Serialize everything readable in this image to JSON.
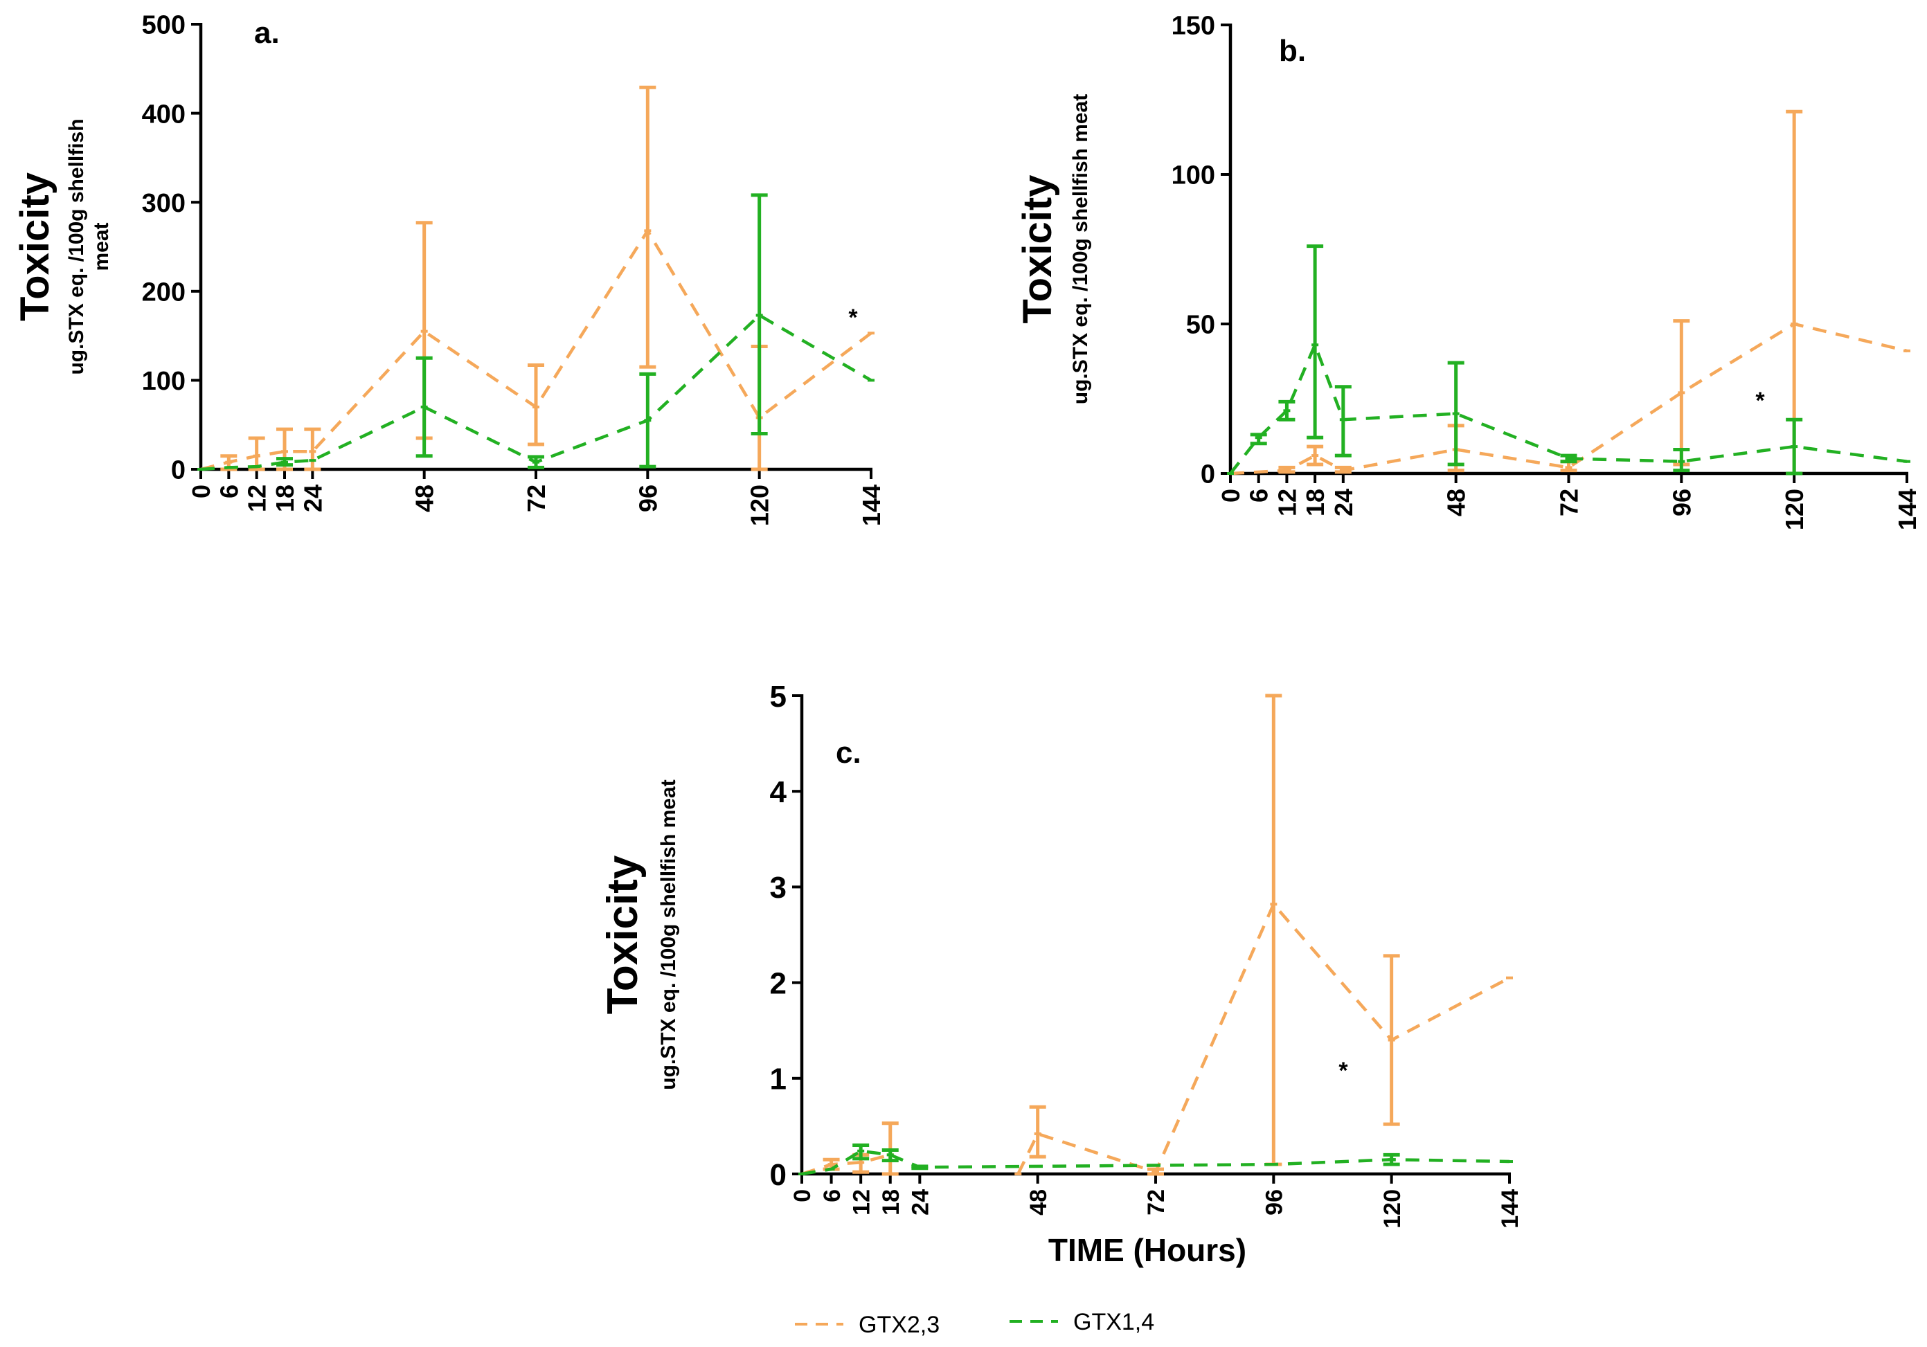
{
  "colors": {
    "GTX2,3": "#F5A85A",
    "GTX1,4": "#22B022"
  },
  "legend": {
    "items": [
      "GTX2,3",
      "GTX1,4"
    ],
    "position": "bottom-center"
  },
  "x_title": "TIME (Hours)",
  "chart_data": [
    {
      "type": "line",
      "panel_label": "a.",
      "annotation": "*",
      "y_title": "Toxicity",
      "y_subtitle_lines": [
        "ug.STX eq. /100g shellfish",
        "meat"
      ],
      "x_ticks": [
        0,
        6,
        12,
        18,
        24,
        48,
        72,
        96,
        120,
        144
      ],
      "y_ticks": [
        0,
        100,
        200,
        300,
        400,
        500
      ],
      "xlim": [
        0,
        144
      ],
      "ylim": [
        0,
        500
      ],
      "series": [
        {
          "name": "GTX2,3",
          "x": [
            0,
            6,
            12,
            18,
            24,
            48,
            72,
            96,
            120,
            144
          ],
          "y": [
            0,
            8,
            15,
            20,
            20,
            155,
            70,
            268,
            58,
            153
          ],
          "err_low": [
            null,
            0,
            0,
            0,
            0,
            35,
            28,
            115,
            0,
            null
          ],
          "err_high": [
            null,
            15,
            35,
            45,
            45,
            277,
            117,
            429,
            138,
            null
          ]
        },
        {
          "name": "GTX1,4",
          "x": [
            0,
            6,
            12,
            18,
            24,
            48,
            72,
            96,
            120,
            144
          ],
          "y": [
            0,
            2,
            3,
            8,
            10,
            70,
            8,
            55,
            173,
            100
          ],
          "err_low": [
            null,
            null,
            null,
            5,
            null,
            15,
            2,
            3,
            40,
            null
          ],
          "err_high": [
            null,
            null,
            null,
            12,
            null,
            125,
            14,
            107,
            308,
            null
          ]
        }
      ]
    },
    {
      "type": "line",
      "panel_label": "b.",
      "annotation": "*",
      "y_title": "Toxicity",
      "y_subtitle_lines": [
        "ug.STX eq. /100g shellfish meat"
      ],
      "x_ticks": [
        0,
        6,
        12,
        18,
        24,
        48,
        72,
        96,
        120,
        144
      ],
      "y_ticks": [
        0,
        50,
        100,
        150
      ],
      "xlim": [
        0,
        144
      ],
      "ylim": [
        0,
        150
      ],
      "series": [
        {
          "name": "GTX2,3",
          "x": [
            0,
            12,
            18,
            24,
            48,
            72,
            96,
            120,
            144
          ],
          "y": [
            0,
            1,
            6,
            1,
            8,
            2,
            27,
            50,
            41
          ],
          "err_low": [
            null,
            0.5,
            3,
            0.5,
            1,
            1,
            3,
            0,
            null
          ],
          "err_high": [
            null,
            2,
            9,
            2,
            16,
            4,
            51,
            121,
            null
          ]
        },
        {
          "name": "GTX1,4",
          "x": [
            0,
            6,
            12,
            18,
            24,
            48,
            72,
            96,
            120,
            144
          ],
          "y": [
            0,
            12,
            21,
            43,
            18,
            20,
            5,
            4,
            9,
            4
          ],
          "err_low": [
            null,
            10,
            18,
            12,
            6,
            3,
            4,
            1,
            0,
            null
          ],
          "err_high": [
            null,
            13,
            24,
            76,
            29,
            37,
            6,
            8,
            18,
            null
          ]
        }
      ]
    },
    {
      "type": "line",
      "panel_label": "c.",
      "annotation": "*",
      "y_title": "Toxicity",
      "y_subtitle_lines": [
        "ug.STX eq. /100g shellfish meat"
      ],
      "x_ticks": [
        0,
        6,
        12,
        18,
        24,
        48,
        72,
        96,
        120,
        144
      ],
      "y_ticks": [
        0,
        1,
        2,
        3,
        4,
        5
      ],
      "xlim": [
        0,
        144
      ],
      "ylim": [
        0,
        5
      ],
      "series": [
        {
          "name": "GTX2,3",
          "x": [
            0,
            6,
            12,
            18,
            24,
            44,
            48,
            72,
            96,
            120,
            144
          ],
          "y": [
            0,
            0.1,
            0.12,
            0.2,
            null,
            0,
            0.42,
            0.02,
            2.82,
            1.4,
            2.05
          ],
          "err_low": [
            null,
            0.05,
            0.02,
            0.0,
            null,
            null,
            0.18,
            0.0,
            0.1,
            0.52,
            null
          ],
          "err_high": [
            null,
            0.15,
            0.2,
            0.53,
            null,
            null,
            0.7,
            0.05,
            5.0,
            2.28,
            null
          ]
        },
        {
          "name": "GTX1,4",
          "x": [
            0,
            6,
            12,
            18,
            24,
            96,
            120,
            144
          ],
          "y": [
            0,
            0.05,
            0.24,
            0.2,
            0.07,
            0.1,
            0.15,
            0.13
          ],
          "err_low": [
            null,
            null,
            0.16,
            0.14,
            0.06,
            null,
            0.1,
            null
          ],
          "err_high": [
            null,
            null,
            0.3,
            0.25,
            0.08,
            null,
            0.2,
            null
          ]
        }
      ]
    }
  ]
}
